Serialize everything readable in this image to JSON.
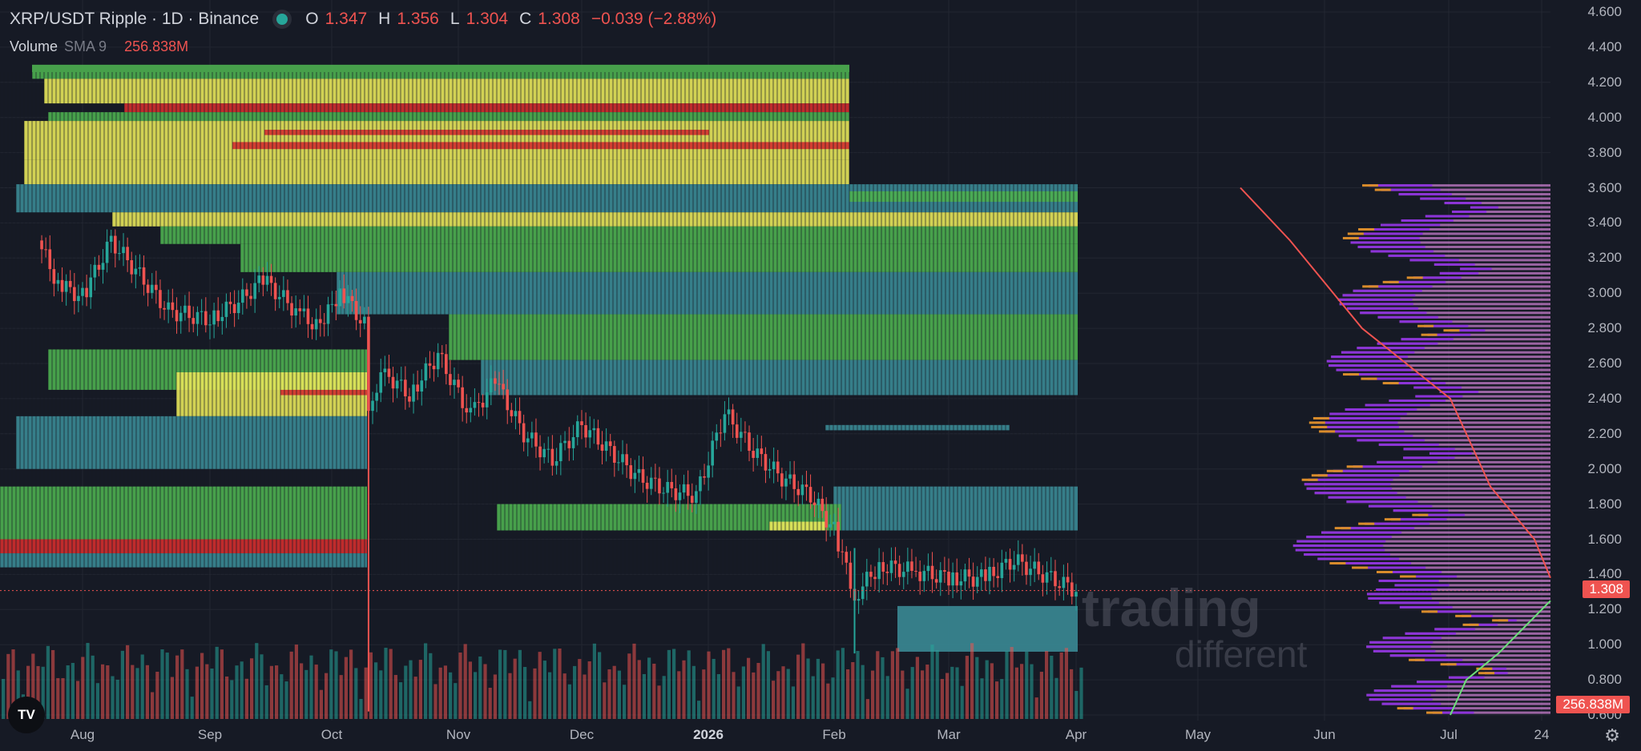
{
  "legend": {
    "symbol_title": "XRP/USDT Ripple · 1D · Binance",
    "ohlc": [
      {
        "label": "O",
        "value": "1.347"
      },
      {
        "label": "H",
        "value": "1.356"
      },
      {
        "label": "L",
        "value": "1.304"
      },
      {
        "label": "C",
        "value": "1.308"
      }
    ],
    "change": "−0.039 (−2.88%)",
    "volume_label": "Volume",
    "volume_sma_label": "SMA 9",
    "volume_value": "256.838M"
  },
  "price_tag": "1.308",
  "volume_tag": "256.838M",
  "watermark": {
    "line1": "trading",
    "line2": "different"
  },
  "logo_text": "TV",
  "colors": {
    "background": "#161a25",
    "up": "#26a69a",
    "down": "#ef5350",
    "heat_teal": "#3a8a95",
    "heat_green": "#4caf50",
    "heat_yellow": "#e6e65a",
    "heat_red": "#d12d2d",
    "profile_purple": "#8a2be2",
    "profile_pink": "#c77dcc",
    "profile_orange": "#d98c2b"
  },
  "chart_data": {
    "type": "candlestick",
    "title": "XRP/USDT Ripple · 1D · Binance",
    "x_ticks": [
      "Aug",
      "Sep",
      "Oct",
      "Nov",
      "Dec",
      "2026",
      "Feb",
      "Mar",
      "Apr",
      "May",
      "Jun",
      "Jul",
      "24"
    ],
    "y_ticks": [
      "4.600",
      "4.400",
      "4.200",
      "4.000",
      "3.800",
      "3.600",
      "3.400",
      "3.200",
      "3.000",
      "2.800",
      "2.600",
      "2.400",
      "2.200",
      "2.000",
      "1.800",
      "1.600",
      "1.400",
      "1.200",
      "1.000",
      "0.800",
      "0.600"
    ],
    "ylim": [
      0.6,
      4.6
    ],
    "last_close": 1.308,
    "close_path": [
      {
        "date": "Jul 20",
        "close": 3.3
      },
      {
        "date": "Jul 25",
        "close": 3.05
      },
      {
        "date": "Aug 1",
        "close": 2.98
      },
      {
        "date": "Aug 8",
        "close": 3.3
      },
      {
        "date": "Aug 15",
        "close": 3.1
      },
      {
        "date": "Aug 22",
        "close": 2.9
      },
      {
        "date": "Sep 1",
        "close": 2.85
      },
      {
        "date": "Sep 8",
        "close": 2.95
      },
      {
        "date": "Sep 14",
        "close": 3.08
      },
      {
        "date": "Sep 22",
        "close": 2.9
      },
      {
        "date": "Sep 28",
        "close": 2.8
      },
      {
        "date": "Oct 3",
        "close": 3.02
      },
      {
        "date": "Oct 9",
        "close": 2.82
      },
      {
        "date": "Oct 10",
        "close": 2.38
      },
      {
        "date": "Oct 14",
        "close": 2.55
      },
      {
        "date": "Oct 20",
        "close": 2.42
      },
      {
        "date": "Oct 27",
        "close": 2.65
      },
      {
        "date": "Nov 4",
        "close": 2.3
      },
      {
        "date": "Nov 10",
        "close": 2.5
      },
      {
        "date": "Nov 17",
        "close": 2.2
      },
      {
        "date": "Nov 24",
        "close": 2.05
      },
      {
        "date": "Dec 1",
        "close": 2.25
      },
      {
        "date": "Dec 8",
        "close": 2.1
      },
      {
        "date": "Dec 15",
        "close": 1.95
      },
      {
        "date": "Dec 22",
        "close": 1.88
      },
      {
        "date": "Dec 29",
        "close": 1.85
      },
      {
        "date": "Jan 5",
        "close": 2.32
      },
      {
        "date": "Jan 12",
        "close": 2.1
      },
      {
        "date": "Jan 19",
        "close": 1.95
      },
      {
        "date": "Jan 26",
        "close": 1.85
      },
      {
        "date": "Feb 1",
        "close": 1.65
      },
      {
        "date": "Feb 6",
        "close": 1.28
      },
      {
        "date": "Feb 12",
        "close": 1.45
      },
      {
        "date": "Feb 20",
        "close": 1.42
      },
      {
        "date": "Mar 1",
        "close": 1.38
      },
      {
        "date": "Mar 10",
        "close": 1.38
      },
      {
        "date": "Mar 17",
        "close": 1.48
      },
      {
        "date": "Mar 24",
        "close": 1.4
      },
      {
        "date": "Apr 1",
        "close": 1.31
      }
    ],
    "volume_sma_9": "256.838M"
  }
}
